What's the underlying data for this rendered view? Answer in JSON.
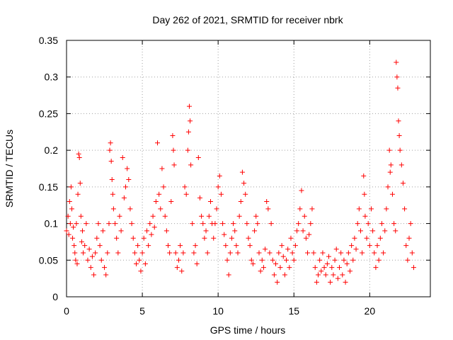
{
  "chart_data": {
    "type": "scatter",
    "title": "Day 262 of 2021, SRMTID for receiver nbrk",
    "xlabel": "GPS time / hours",
    "ylabel": "SRMTID / TECUs",
    "xlim": [
      0,
      24
    ],
    "ylim": [
      0,
      0.35
    ],
    "xticks": [
      0,
      5,
      10,
      15,
      20
    ],
    "yticks": [
      0,
      0.05,
      0.1,
      0.15,
      0.2,
      0.25,
      0.3,
      0.35
    ],
    "xtick_labels": [
      "0",
      "5",
      "10",
      "15",
      "20"
    ],
    "ytick_labels": [
      "0",
      "0.05",
      "0.1",
      "0.15",
      "0.2",
      "0.25",
      "0.3",
      "0.35"
    ],
    "grid": true,
    "marker": "+",
    "color": "#ff0000",
    "series": [
      {
        "name": "SRMTID",
        "points": [
          [
            0.0,
            0.09
          ],
          [
            0.1,
            0.11
          ],
          [
            0.15,
            0.085
          ],
          [
            0.2,
            0.13
          ],
          [
            0.25,
            0.1
          ],
          [
            0.3,
            0.15
          ],
          [
            0.35,
            0.12
          ],
          [
            0.4,
            0.08
          ],
          [
            0.45,
            0.095
          ],
          [
            0.5,
            0.07
          ],
          [
            0.55,
            0.06
          ],
          [
            0.6,
            0.05
          ],
          [
            0.65,
            0.1
          ],
          [
            0.7,
            0.045
          ],
          [
            0.75,
            0.14
          ],
          [
            0.8,
            0.195
          ],
          [
            0.85,
            0.19
          ],
          [
            0.9,
            0.155
          ],
          [
            0.95,
            0.11
          ],
          [
            1.0,
            0.075
          ],
          [
            1.05,
            0.09
          ],
          [
            1.1,
            0.06
          ],
          [
            1.2,
            0.07
          ],
          [
            1.3,
            0.1
          ],
          [
            1.4,
            0.05
          ],
          [
            1.5,
            0.065
          ],
          [
            1.6,
            0.04
          ],
          [
            1.7,
            0.055
          ],
          [
            1.8,
            0.03
          ],
          [
            1.9,
            0.06
          ],
          [
            2.0,
            0.08
          ],
          [
            2.1,
            0.1
          ],
          [
            2.2,
            0.07
          ],
          [
            2.3,
            0.05
          ],
          [
            2.4,
            0.09
          ],
          [
            2.5,
            0.04
          ],
          [
            2.6,
            0.03
          ],
          [
            2.7,
            0.06
          ],
          [
            2.8,
            0.1
          ],
          [
            2.85,
            0.2
          ],
          [
            2.9,
            0.21
          ],
          [
            2.95,
            0.185
          ],
          [
            3.0,
            0.16
          ],
          [
            3.05,
            0.14
          ],
          [
            3.1,
            0.12
          ],
          [
            3.2,
            0.1
          ],
          [
            3.3,
            0.08
          ],
          [
            3.4,
            0.06
          ],
          [
            3.5,
            0.11
          ],
          [
            3.6,
            0.09
          ],
          [
            3.7,
            0.19
          ],
          [
            3.8,
            0.135
          ],
          [
            3.9,
            0.15
          ],
          [
            4.0,
            0.175
          ],
          [
            4.1,
            0.16
          ],
          [
            4.2,
            0.12
          ],
          [
            4.3,
            0.1
          ],
          [
            4.4,
            0.08
          ],
          [
            4.5,
            0.06
          ],
          [
            4.6,
            0.045
          ],
          [
            4.7,
            0.07
          ],
          [
            4.8,
            0.05
          ],
          [
            4.9,
            0.035
          ],
          [
            5.0,
            0.06
          ],
          [
            5.1,
            0.08
          ],
          [
            5.2,
            0.045
          ],
          [
            5.3,
            0.09
          ],
          [
            5.4,
            0.07
          ],
          [
            5.5,
            0.1
          ],
          [
            5.6,
            0.085
          ],
          [
            5.7,
            0.11
          ],
          [
            5.8,
            0.095
          ],
          [
            5.9,
            0.13
          ],
          [
            6.0,
            0.21
          ],
          [
            6.1,
            0.14
          ],
          [
            6.2,
            0.12
          ],
          [
            6.3,
            0.175
          ],
          [
            6.4,
            0.15
          ],
          [
            6.5,
            0.11
          ],
          [
            6.6,
            0.09
          ],
          [
            6.7,
            0.07
          ],
          [
            6.8,
            0.06
          ],
          [
            6.9,
            0.13
          ],
          [
            7.0,
            0.22
          ],
          [
            7.05,
            0.2
          ],
          [
            7.1,
            0.18
          ],
          [
            7.2,
            0.06
          ],
          [
            7.3,
            0.04
          ],
          [
            7.4,
            0.05
          ],
          [
            7.5,
            0.07
          ],
          [
            7.6,
            0.035
          ],
          [
            7.7,
            0.06
          ],
          [
            7.8,
            0.15
          ],
          [
            7.9,
            0.14
          ],
          [
            8.0,
            0.2
          ],
          [
            8.05,
            0.225
          ],
          [
            8.1,
            0.26
          ],
          [
            8.15,
            0.24
          ],
          [
            8.2,
            0.18
          ],
          [
            8.3,
            0.1
          ],
          [
            8.4,
            0.06
          ],
          [
            8.5,
            0.07
          ],
          [
            8.6,
            0.045
          ],
          [
            8.7,
            0.19
          ],
          [
            8.8,
            0.135
          ],
          [
            8.9,
            0.11
          ],
          [
            9.0,
            0.1
          ],
          [
            9.1,
            0.08
          ],
          [
            9.2,
            0.09
          ],
          [
            9.3,
            0.06
          ],
          [
            9.4,
            0.11
          ],
          [
            9.5,
            0.13
          ],
          [
            9.6,
            0.1
          ],
          [
            9.7,
            0.08
          ],
          [
            9.8,
            0.1
          ],
          [
            9.9,
            0.12
          ],
          [
            10.0,
            0.15
          ],
          [
            10.1,
            0.165
          ],
          [
            10.2,
            0.14
          ],
          [
            10.3,
            0.1
          ],
          [
            10.4,
            0.085
          ],
          [
            10.5,
            0.07
          ],
          [
            10.6,
            0.05
          ],
          [
            10.7,
            0.03
          ],
          [
            10.8,
            0.06
          ],
          [
            10.9,
            0.08
          ],
          [
            11.0,
            0.1
          ],
          [
            11.1,
            0.09
          ],
          [
            11.2,
            0.07
          ],
          [
            11.3,
            0.06
          ],
          [
            11.4,
            0.11
          ],
          [
            11.5,
            0.13
          ],
          [
            11.6,
            0.17
          ],
          [
            11.7,
            0.155
          ],
          [
            11.8,
            0.14
          ],
          [
            11.9,
            0.1
          ],
          [
            12.0,
            0.08
          ],
          [
            12.1,
            0.07
          ],
          [
            12.2,
            0.05
          ],
          [
            12.3,
            0.045
          ],
          [
            12.4,
            0.09
          ],
          [
            12.5,
            0.11
          ],
          [
            12.6,
            0.1
          ],
          [
            12.7,
            0.06
          ],
          [
            12.8,
            0.035
          ],
          [
            12.9,
            0.05
          ],
          [
            13.0,
            0.04
          ],
          [
            13.1,
            0.065
          ],
          [
            13.2,
            0.13
          ],
          [
            13.3,
            0.12
          ],
          [
            13.4,
            0.06
          ],
          [
            13.5,
            0.1
          ],
          [
            13.6,
            0.05
          ],
          [
            13.7,
            0.03
          ],
          [
            13.8,
            0.045
          ],
          [
            13.9,
            0.02
          ],
          [
            14.0,
            0.06
          ],
          [
            14.1,
            0.04
          ],
          [
            14.2,
            0.07
          ],
          [
            14.3,
            0.055
          ],
          [
            14.4,
            0.03
          ],
          [
            14.5,
            0.05
          ],
          [
            14.6,
            0.065
          ],
          [
            14.7,
            0.04
          ],
          [
            14.8,
            0.08
          ],
          [
            14.9,
            0.06
          ],
          [
            15.0,
            0.05
          ],
          [
            15.1,
            0.07
          ],
          [
            15.2,
            0.09
          ],
          [
            15.3,
            0.1
          ],
          [
            15.4,
            0.12
          ],
          [
            15.5,
            0.145
          ],
          [
            15.6,
            0.09
          ],
          [
            15.7,
            0.11
          ],
          [
            15.8,
            0.08
          ],
          [
            15.9,
            0.06
          ],
          [
            16.0,
            0.085
          ],
          [
            16.1,
            0.1
          ],
          [
            16.2,
            0.12
          ],
          [
            16.3,
            0.06
          ],
          [
            16.4,
            0.04
          ],
          [
            16.5,
            0.02
          ],
          [
            16.6,
            0.03
          ],
          [
            16.7,
            0.05
          ],
          [
            16.8,
            0.035
          ],
          [
            16.9,
            0.06
          ],
          [
            17.0,
            0.04
          ],
          [
            17.1,
            0.03
          ],
          [
            17.2,
            0.045
          ],
          [
            17.3,
            0.055
          ],
          [
            17.4,
            0.02
          ],
          [
            17.5,
            0.04
          ],
          [
            17.6,
            0.03
          ],
          [
            17.7,
            0.05
          ],
          [
            17.8,
            0.065
          ],
          [
            17.9,
            0.025
          ],
          [
            18.0,
            0.04
          ],
          [
            18.1,
            0.06
          ],
          [
            18.2,
            0.03
          ],
          [
            18.3,
            0.05
          ],
          [
            18.4,
            0.02
          ],
          [
            18.5,
            0.045
          ],
          [
            18.6,
            0.06
          ],
          [
            18.7,
            0.035
          ],
          [
            18.8,
            0.07
          ],
          [
            18.9,
            0.05
          ],
          [
            19.0,
            0.08
          ],
          [
            19.1,
            0.065
          ],
          [
            19.2,
            0.1
          ],
          [
            19.3,
            0.12
          ],
          [
            19.4,
            0.09
          ],
          [
            19.5,
            0.06
          ],
          [
            19.6,
            0.165
          ],
          [
            19.65,
            0.14
          ],
          [
            19.7,
            0.11
          ],
          [
            19.8,
            0.08
          ],
          [
            19.9,
            0.1
          ],
          [
            20.0,
            0.07
          ],
          [
            20.1,
            0.12
          ],
          [
            20.2,
            0.09
          ],
          [
            20.3,
            0.06
          ],
          [
            20.4,
            0.04
          ],
          [
            20.5,
            0.07
          ],
          [
            20.6,
            0.05
          ],
          [
            20.7,
            0.08
          ],
          [
            20.8,
            0.1
          ],
          [
            20.9,
            0.06
          ],
          [
            21.0,
            0.09
          ],
          [
            21.1,
            0.12
          ],
          [
            21.2,
            0.15
          ],
          [
            21.3,
            0.2
          ],
          [
            21.35,
            0.17
          ],
          [
            21.4,
            0.18
          ],
          [
            21.5,
            0.14
          ],
          [
            21.6,
            0.1
          ],
          [
            21.7,
            0.09
          ],
          [
            21.75,
            0.32
          ],
          [
            21.8,
            0.3
          ],
          [
            21.85,
            0.285
          ],
          [
            21.9,
            0.24
          ],
          [
            21.95,
            0.22
          ],
          [
            22.0,
            0.2
          ],
          [
            22.1,
            0.18
          ],
          [
            22.2,
            0.155
          ],
          [
            22.3,
            0.12
          ],
          [
            22.4,
            0.07
          ],
          [
            22.5,
            0.05
          ],
          [
            22.6,
            0.08
          ],
          [
            22.7,
            0.1
          ],
          [
            22.8,
            0.06
          ],
          [
            22.9,
            0.04
          ]
        ]
      }
    ]
  }
}
